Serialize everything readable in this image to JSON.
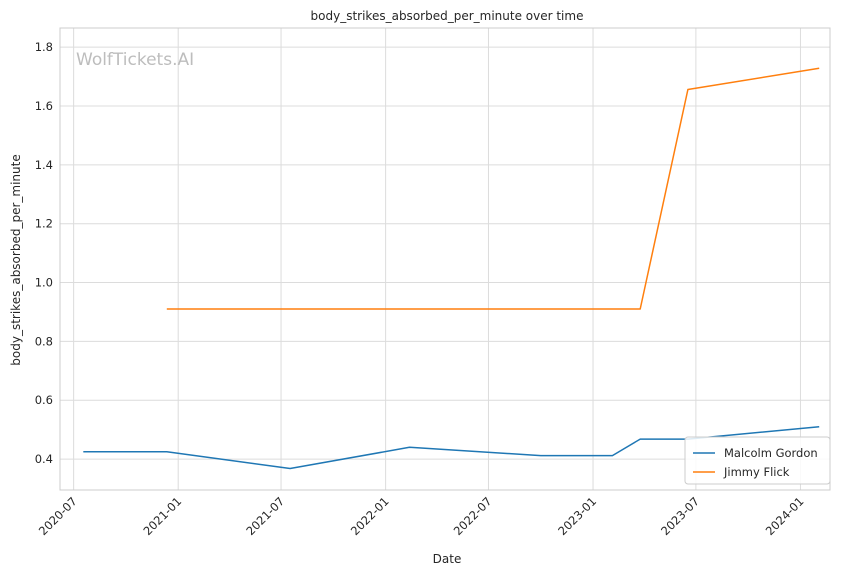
{
  "chart_data": {
    "type": "line",
    "title": "body_strikes_absorbed_per_minute over time",
    "xlabel": "Date",
    "ylabel": "body_strikes_absorbed_per_minute",
    "watermark": "WolfTickets.AI",
    "x_ticks": [
      "2020-07",
      "2021-01",
      "2021-07",
      "2022-01",
      "2022-07",
      "2023-01",
      "2023-07",
      "2024-01"
    ],
    "y_ticks": [
      "0.4",
      "0.6",
      "0.8",
      "1.0",
      "1.2",
      "1.4",
      "1.6",
      "1.8"
    ],
    "xlim": [
      "2020-06-07",
      "2024-02-22"
    ],
    "ylim": [
      0.295,
      1.865
    ],
    "grid": true,
    "legend_position": "lower-right",
    "series": [
      {
        "name": "Malcolm Gordon",
        "color": "#1f77b4",
        "points": [
          [
            "2020-07-18",
            0.425
          ],
          [
            "2020-12-12",
            0.425
          ],
          [
            "2021-07-17",
            0.368
          ],
          [
            "2022-02-12",
            0.44
          ],
          [
            "2022-10-01",
            0.412
          ],
          [
            "2023-02-04",
            0.412
          ],
          [
            "2023-03-25",
            0.468
          ],
          [
            "2023-06-17",
            0.468
          ],
          [
            "2024-02-03",
            0.51
          ]
        ]
      },
      {
        "name": "Jimmy Flick",
        "color": "#ff7f0e",
        "points": [
          [
            "2020-12-12",
            0.91
          ],
          [
            "2023-03-25",
            0.91
          ],
          [
            "2023-06-17",
            1.656
          ],
          [
            "2024-02-03",
            1.728
          ]
        ]
      }
    ]
  }
}
